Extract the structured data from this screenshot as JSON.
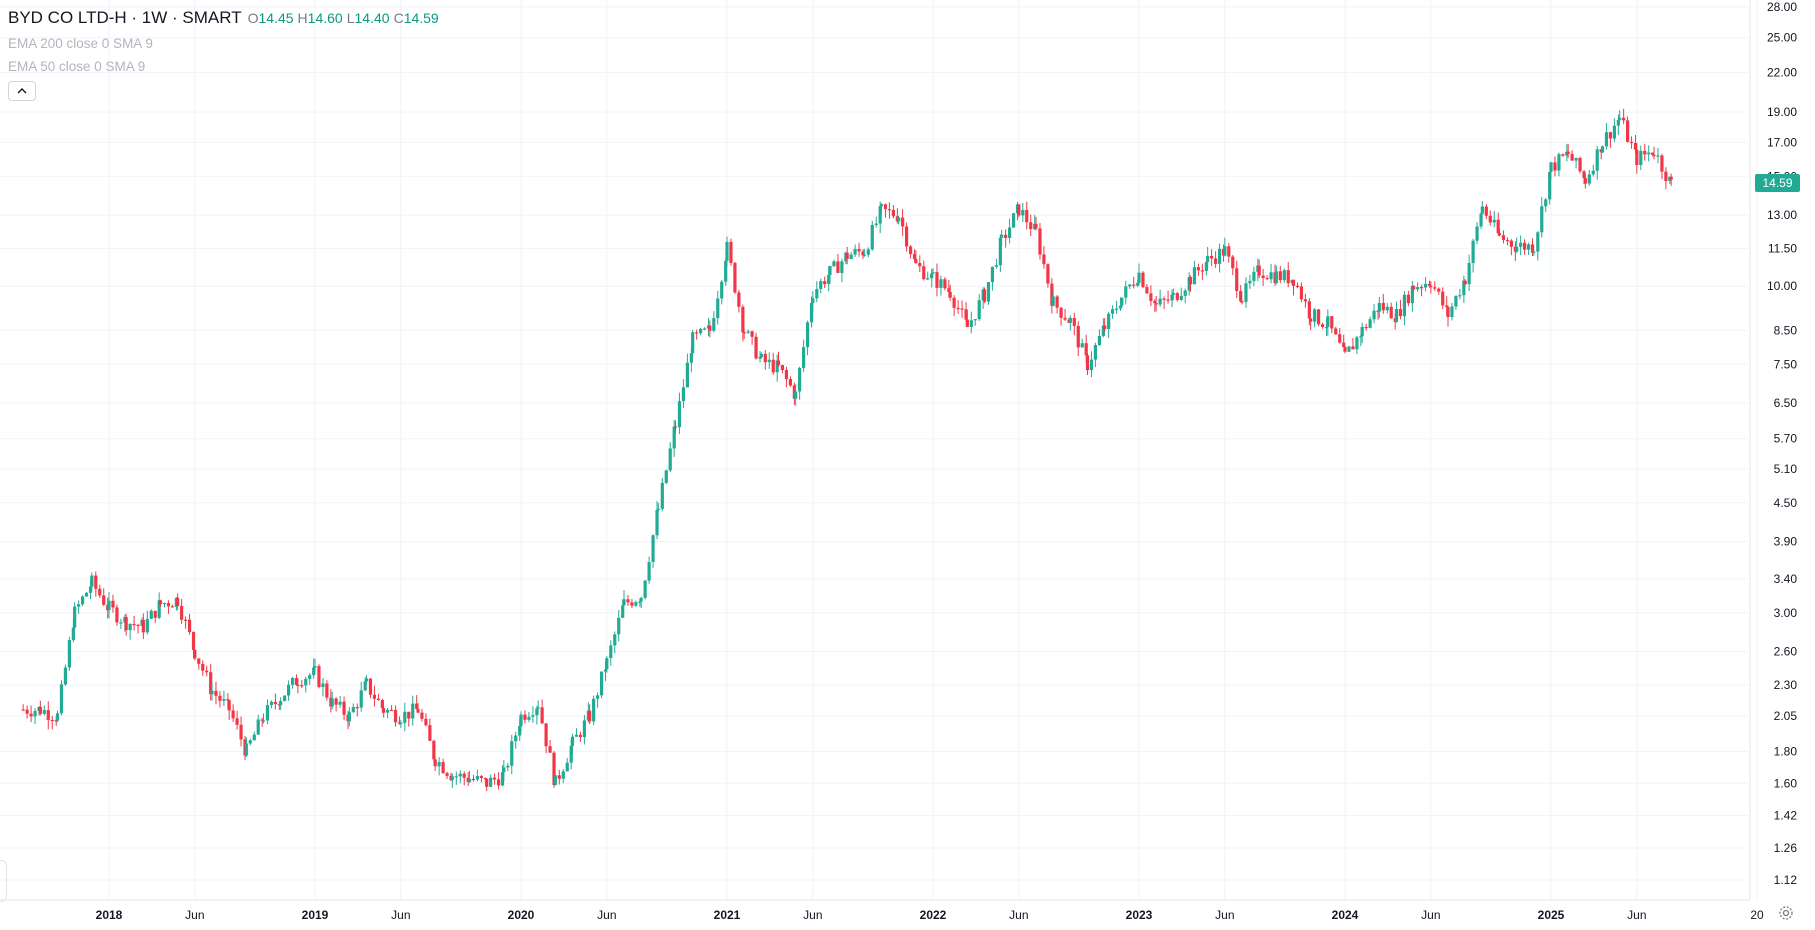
{
  "legend": {
    "symbol": "BYD CO LTD-H · 1W · SMART",
    "open_label": "O",
    "open": "14.45",
    "high_label": "H",
    "high": "14.60",
    "low_label": "L",
    "low": "14.40",
    "close_label": "C",
    "close": "14.59",
    "studies": [
      "EMA 200 close 0 SMA 9",
      "EMA 50 close 0 SMA 9"
    ]
  },
  "last_price_badge": "14.59",
  "colors": {
    "up": "#22ab94",
    "down": "#f23645",
    "grid": "#f0f3fa",
    "axis_text": "#131722"
  },
  "icons": {
    "collapse": "chevron-up-icon",
    "settings": "gear-icon"
  },
  "chart_data": {
    "type": "candlestick",
    "scale": "log",
    "y_ticks": [
      "28.00",
      "25.00",
      "22.00",
      "19.00",
      "17.00",
      "15.00",
      "13.00",
      "11.50",
      "10.00",
      "8.50",
      "7.50",
      "6.50",
      "5.70",
      "5.10",
      "4.50",
      "3.90",
      "3.40",
      "3.00",
      "2.60",
      "2.30",
      "2.05",
      "1.80",
      "1.60",
      "1.42",
      "1.26",
      "1.12"
    ],
    "x_ticks": [
      "2018",
      "Jun",
      "2019",
      "Jun",
      "2020",
      "Jun",
      "2021",
      "Jun",
      "2022",
      "Jun",
      "2023",
      "Jun",
      "2024",
      "Jun",
      "2025",
      "Jun",
      "20"
    ],
    "ylim": [
      1.05,
      28.5
    ],
    "series": [
      {
        "date": "2017-08",
        "close": 2.1
      },
      {
        "date": "2017-09",
        "close": 2.1
      },
      {
        "date": "2017-10",
        "close": 2.05
      },
      {
        "date": "2017-11",
        "close": 3.0
      },
      {
        "date": "2017-12",
        "close": 3.35
      },
      {
        "date": "2018-01",
        "close": 3.05
      },
      {
        "date": "2018-02",
        "close": 2.9
      },
      {
        "date": "2018-03",
        "close": 2.85
      },
      {
        "date": "2018-04",
        "close": 3.1
      },
      {
        "date": "2018-05",
        "close": 3.15
      },
      {
        "date": "2018-06",
        "close": 2.6
      },
      {
        "date": "2018-07",
        "close": 2.25
      },
      {
        "date": "2018-08",
        "close": 2.1
      },
      {
        "date": "2018-09",
        "close": 1.8
      },
      {
        "date": "2018-10",
        "close": 2.05
      },
      {
        "date": "2018-11",
        "close": 2.2
      },
      {
        "date": "2018-12",
        "close": 2.35
      },
      {
        "date": "2019-01",
        "close": 2.4
      },
      {
        "date": "2019-02",
        "close": 2.15
      },
      {
        "date": "2019-03",
        "close": 2.05
      },
      {
        "date": "2019-04",
        "close": 2.3
      },
      {
        "date": "2019-05",
        "close": 2.1
      },
      {
        "date": "2019-06",
        "close": 2.05
      },
      {
        "date": "2019-07",
        "close": 2.1
      },
      {
        "date": "2019-08",
        "close": 1.75
      },
      {
        "date": "2019-09",
        "close": 1.65
      },
      {
        "date": "2019-10",
        "close": 1.63
      },
      {
        "date": "2019-11",
        "close": 1.6
      },
      {
        "date": "2019-12",
        "close": 1.65
      },
      {
        "date": "2020-01",
        "close": 2.05
      },
      {
        "date": "2020-02",
        "close": 2.15
      },
      {
        "date": "2020-03",
        "close": 1.6
      },
      {
        "date": "2020-04",
        "close": 1.85
      },
      {
        "date": "2020-05",
        "close": 2.05
      },
      {
        "date": "2020-06",
        "close": 2.5
      },
      {
        "date": "2020-07",
        "close": 3.1
      },
      {
        "date": "2020-08",
        "close": 3.2
      },
      {
        "date": "2020-09",
        "close": 4.4
      },
      {
        "date": "2020-10",
        "close": 6.0
      },
      {
        "date": "2020-11",
        "close": 8.2
      },
      {
        "date": "2020-12",
        "close": 8.5
      },
      {
        "date": "2021-01",
        "close": 11.5
      },
      {
        "date": "2021-02",
        "close": 8.5
      },
      {
        "date": "2021-03",
        "close": 7.6
      },
      {
        "date": "2021-04",
        "close": 7.4
      },
      {
        "date": "2021-05",
        "close": 6.7
      },
      {
        "date": "2021-06",
        "close": 9.8
      },
      {
        "date": "2021-07",
        "close": 10.5
      },
      {
        "date": "2021-08",
        "close": 11.2
      },
      {
        "date": "2021-09",
        "close": 11.4
      },
      {
        "date": "2021-10",
        "close": 13.2
      },
      {
        "date": "2021-11",
        "close": 13.0
      },
      {
        "date": "2021-12",
        "close": 10.8
      },
      {
        "date": "2022-01",
        "close": 10.3
      },
      {
        "date": "2022-02",
        "close": 9.8
      },
      {
        "date": "2022-03",
        "close": 8.6
      },
      {
        "date": "2022-04",
        "close": 9.7
      },
      {
        "date": "2022-05",
        "close": 11.8
      },
      {
        "date": "2022-06",
        "close": 13.3
      },
      {
        "date": "2022-07",
        "close": 12.2
      },
      {
        "date": "2022-08",
        "close": 9.4
      },
      {
        "date": "2022-09",
        "close": 8.8
      },
      {
        "date": "2022-10",
        "close": 7.5
      },
      {
        "date": "2022-11",
        "close": 8.6
      },
      {
        "date": "2022-12",
        "close": 9.6
      },
      {
        "date": "2023-01",
        "close": 10.5
      },
      {
        "date": "2023-02",
        "close": 9.3
      },
      {
        "date": "2023-03",
        "close": 9.6
      },
      {
        "date": "2023-04",
        "close": 10.3
      },
      {
        "date": "2023-05",
        "close": 11.0
      },
      {
        "date": "2023-06",
        "close": 11.4
      },
      {
        "date": "2023-07",
        "close": 9.6
      },
      {
        "date": "2023-08",
        "close": 10.6
      },
      {
        "date": "2023-09",
        "close": 10.4
      },
      {
        "date": "2023-10",
        "close": 10.3
      },
      {
        "date": "2023-11",
        "close": 9.0
      },
      {
        "date": "2023-12",
        "close": 8.7
      },
      {
        "date": "2024-01",
        "close": 7.7
      },
      {
        "date": "2024-02",
        "close": 8.5
      },
      {
        "date": "2024-03",
        "close": 9.3
      },
      {
        "date": "2024-04",
        "close": 9.0
      },
      {
        "date": "2024-05",
        "close": 10.0
      },
      {
        "date": "2024-06",
        "close": 10.2
      },
      {
        "date": "2024-07",
        "close": 9.0
      },
      {
        "date": "2024-08",
        "close": 10.3
      },
      {
        "date": "2024-09",
        "close": 13.4
      },
      {
        "date": "2024-10",
        "close": 12.0
      },
      {
        "date": "2024-11",
        "close": 11.6
      },
      {
        "date": "2024-12",
        "close": 11.6
      },
      {
        "date": "2025-01",
        "close": 15.5
      },
      {
        "date": "2025-02",
        "close": 16.3
      },
      {
        "date": "2025-03",
        "close": 14.8
      },
      {
        "date": "2025-04",
        "close": 17.0
      },
      {
        "date": "2025-05",
        "close": 18.6
      },
      {
        "date": "2025-06",
        "close": 16.0
      },
      {
        "date": "2025-07",
        "close": 16.5
      },
      {
        "date": "2025-08",
        "close": 14.59
      }
    ]
  }
}
